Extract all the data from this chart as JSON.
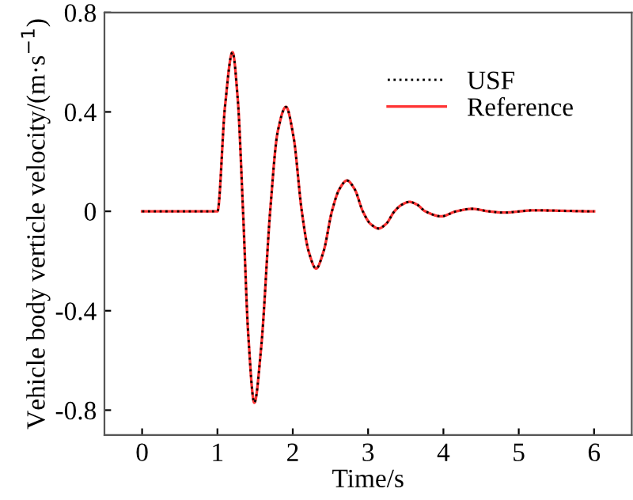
{
  "chart_data": {
    "type": "line",
    "xlabel": "Time/s",
    "ylabel": "Vehicle body verticle velocity/(m·s$^{−1}$)",
    "xlim": [
      -0.5,
      6.5
    ],
    "xticks": [
      0,
      1,
      2,
      3,
      4,
      5,
      6
    ],
    "ylim": [
      -0.9,
      0.8
    ],
    "yticks": [
      {
        "value": -0.8,
        "label": "-0.8"
      },
      {
        "value": -0.4,
        "label": "-0.4"
      },
      0,
      0.4,
      0.8
    ],
    "x": [
      0,
      1.0,
      1.1,
      1.2,
      1.27,
      1.34,
      1.41,
      1.49,
      1.58,
      1.7,
      1.8,
      1.91,
      2.01,
      2.12,
      2.21,
      2.31,
      2.41,
      2.52,
      2.62,
      2.72,
      2.82,
      2.93,
      3.03,
      3.14,
      3.24,
      3.35,
      3.45,
      3.55,
      3.65,
      3.76,
      3.97,
      4.17,
      4.38,
      4.6,
      4.8,
      5.2,
      6
    ],
    "series": [
      {
        "name": "USF",
        "color": "#000000",
        "line_style": "dotted",
        "values": [
          0,
          0,
          0.42,
          0.64,
          0.45,
          0,
          -0.5,
          -0.77,
          -0.55,
          0,
          0.32,
          0.42,
          0.3,
          0,
          -0.16,
          -0.23,
          -0.16,
          0,
          0.09,
          0.124,
          0.09,
          0,
          -0.05,
          -0.069,
          -0.05,
          0,
          0.027,
          0.038,
          0.027,
          0,
          -0.02,
          0,
          0.01,
          0,
          -0.005,
          0.004,
          0
        ]
      },
      {
        "name": "Reference",
        "color": "#ff3333",
        "line_style": "solid",
        "values": [
          0,
          0,
          0.42,
          0.64,
          0.45,
          0,
          -0.5,
          -0.77,
          -0.55,
          0,
          0.32,
          0.42,
          0.3,
          0,
          -0.16,
          -0.23,
          -0.16,
          0,
          0.09,
          0.124,
          0.09,
          0,
          -0.05,
          -0.069,
          -0.05,
          0,
          0.027,
          0.038,
          0.027,
          0,
          -0.02,
          0,
          0.01,
          0,
          -0.005,
          0.004,
          0
        ]
      }
    ],
    "legend": "top right",
    "grid": false
  }
}
